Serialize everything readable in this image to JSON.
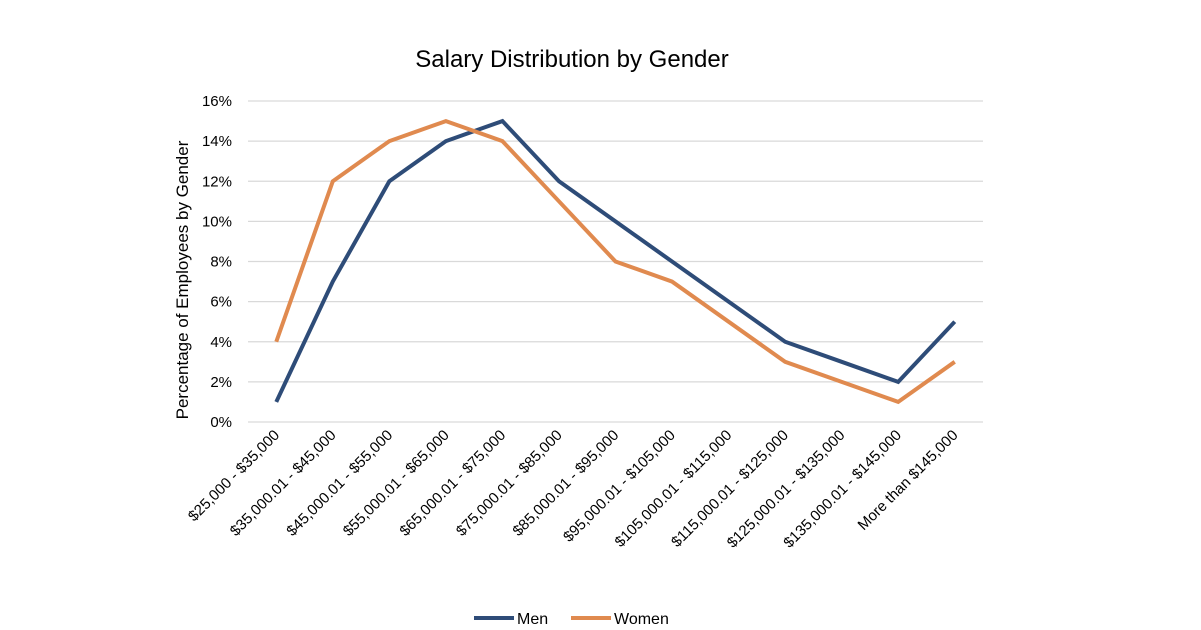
{
  "chart_data": {
    "type": "line",
    "title": "Salary Distribution by Gender",
    "xlabel": "",
    "ylabel": "Percentage of  Employees by Gender",
    "ylim": [
      0,
      16
    ],
    "yticks": [
      "0%",
      "2%",
      "4%",
      "6%",
      "8%",
      "10%",
      "12%",
      "14%",
      "16%"
    ],
    "ytick_values": [
      0,
      2,
      4,
      6,
      8,
      10,
      12,
      14,
      16
    ],
    "grid": true,
    "legend_position": "bottom",
    "categories": [
      "$25,000 - $35,000",
      "$35,000.01 - $45,000",
      "$45,000.01 - $55,000",
      "$55,000.01 - $65,000",
      "$65,000.01 - $75,000",
      "$75,000.01 - $85,000",
      "$85,000.01 - $95,000",
      "$95,000.01 - $105,000",
      "$105,000.01 - $115,000",
      "$115,000.01 - $125,000",
      "$125,000.01 - $135,000",
      "$135,000.01 - $145,000",
      "More than $145,000"
    ],
    "series": [
      {
        "name": "Men",
        "color": "#2E4C78",
        "values": [
          1,
          7,
          12,
          14,
          15,
          12,
          10,
          8,
          6,
          4,
          3,
          2,
          5
        ]
      },
      {
        "name": "Women",
        "color": "#E08A4F",
        "values": [
          4,
          12,
          14,
          15,
          14,
          11,
          8,
          7,
          5,
          3,
          2,
          1,
          3
        ]
      }
    ]
  }
}
